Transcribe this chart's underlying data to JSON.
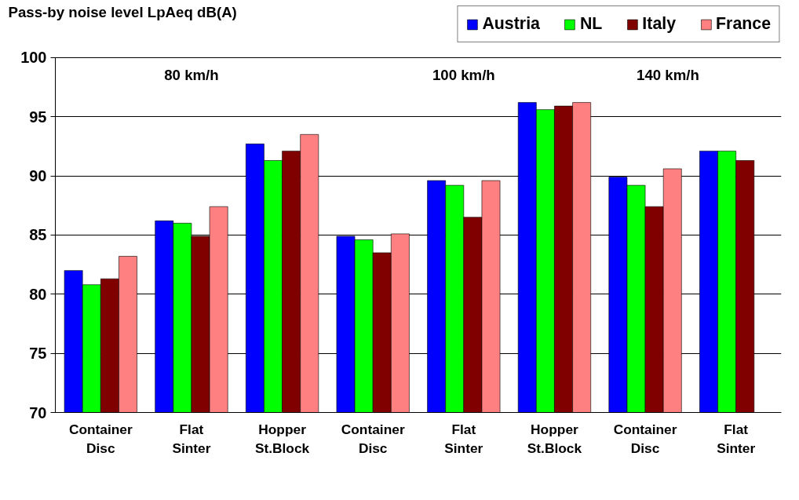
{
  "chart_data": {
    "type": "bar",
    "ylabel": "Pass-by noise level LpAeq dB(A)",
    "categories": [
      "Container\nDisc",
      "Flat\nSinter",
      "Hopper\nSt.Block",
      "Container\nDisc",
      "Flat\nSinter",
      "Hopper\nSt.Block",
      "Container\nDisc",
      "Flat\nSinter"
    ],
    "series": [
      {
        "name": "Austria",
        "color": "#0000ff",
        "values": [
          82.0,
          86.2,
          92.7,
          84.9,
          89.6,
          96.2,
          89.9,
          92.1
        ]
      },
      {
        "name": "NL",
        "color": "#00ff00",
        "values": [
          80.8,
          86.0,
          91.3,
          84.6,
          89.2,
          95.6,
          89.2,
          92.1
        ]
      },
      {
        "name": "Italy",
        "color": "#800000",
        "values": [
          81.3,
          84.9,
          92.1,
          83.5,
          86.5,
          95.9,
          87.4,
          91.3
        ]
      },
      {
        "name": "France",
        "color": "#ff8080",
        "values": [
          83.2,
          87.4,
          93.5,
          85.1,
          89.6,
          96.2,
          90.6,
          null
        ]
      }
    ],
    "ylim": [
      70,
      100
    ],
    "yticks": [
      70,
      75,
      80,
      85,
      90,
      95,
      100
    ],
    "grid": "y",
    "legend": "top right",
    "annotations": [
      "80 km/h",
      "100 km/h",
      "140 km/h"
    ]
  }
}
